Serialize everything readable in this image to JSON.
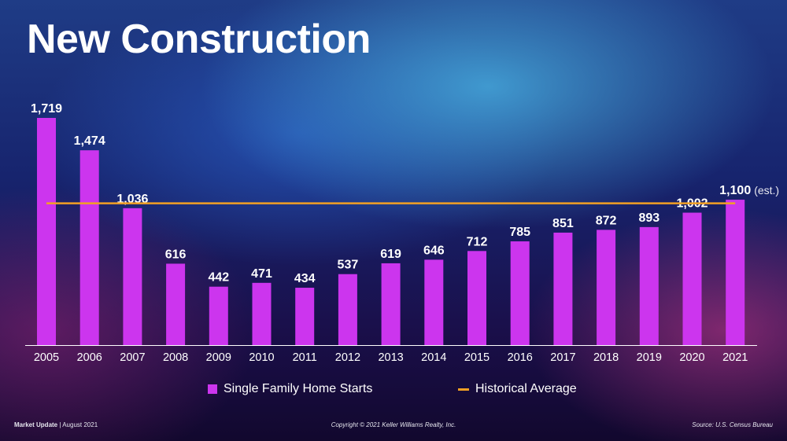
{
  "page": {
    "title": "New Construction",
    "footer": {
      "brand": "Market Update",
      "separator": "|",
      "date": "August 2021",
      "copyright": "Copyright © 2021 Keller Williams Realty, Inc.",
      "source": "Source: U.S. Census Bureau"
    }
  },
  "legend": {
    "bar_label": "Single Family Home Starts",
    "line_label": "Historical Average"
  },
  "colors": {
    "bar": "#cc35ee",
    "average_line": "#f2a024",
    "axis": "#ffffff"
  },
  "chart_data": {
    "type": "bar",
    "title": "New Construction",
    "categories": [
      "2005",
      "2006",
      "2007",
      "2008",
      "2009",
      "2010",
      "2011",
      "2012",
      "2013",
      "2014",
      "2015",
      "2016",
      "2017",
      "2018",
      "2019",
      "2020",
      "2021"
    ],
    "series": [
      {
        "name": "Single Family Home Starts",
        "values": [
          1719,
          1474,
          1036,
          616,
          442,
          471,
          434,
          537,
          619,
          646,
          712,
          785,
          851,
          872,
          893,
          1002,
          1100
        ],
        "labels": [
          "1,719",
          "1,474",
          "1,036",
          "616",
          "442",
          "471",
          "434",
          "537",
          "619",
          "646",
          "712",
          "785",
          "851",
          "872",
          "893",
          "1,002",
          "1,100"
        ]
      }
    ],
    "reference_lines": [
      {
        "name": "Historical Average",
        "value": 1073
      }
    ],
    "annotations": [
      {
        "category": "2021",
        "text": "(est.)"
      }
    ],
    "ylim": [
      0,
      1780
    ],
    "grid": false,
    "legend": "bottom"
  }
}
